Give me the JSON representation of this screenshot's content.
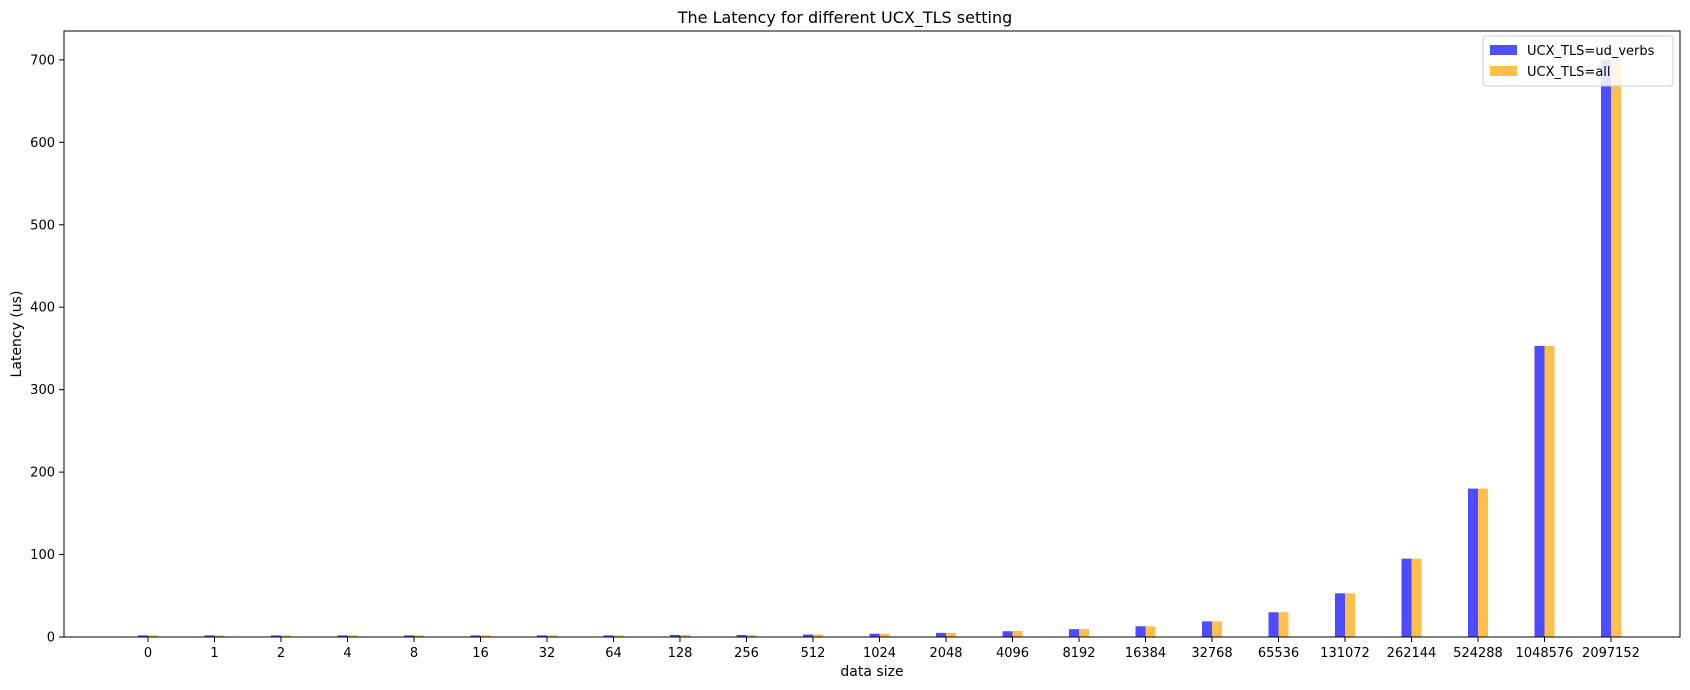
{
  "chart_data": {
    "type": "bar",
    "title": "The Latency for different UCX_TLS setting",
    "xlabel": "data size",
    "ylabel": "Latency (us)",
    "categories": [
      "0",
      "1",
      "2",
      "4",
      "8",
      "16",
      "32",
      "64",
      "128",
      "256",
      "512",
      "1024",
      "2048",
      "4096",
      "8192",
      "16384",
      "32768",
      "65536",
      "131072",
      "262144",
      "524288",
      "1048576",
      "2097152"
    ],
    "series": [
      {
        "name": "UCX_TLS=ud_verbs",
        "color": "#4d4dff",
        "values": [
          2.0,
          2.0,
          2.0,
          2.0,
          2.0,
          2.0,
          2.0,
          2.0,
          2.5,
          2.5,
          3.0,
          4.0,
          5.0,
          7.0,
          9.5,
          13.0,
          19.0,
          30.0,
          53.0,
          95.0,
          180.0,
          353.0,
          700.0
        ]
      },
      {
        "name": "UCX_TLS=all",
        "color": "#ffbf4d",
        "values": [
          2.0,
          2.0,
          2.0,
          2.0,
          2.0,
          2.0,
          2.0,
          2.0,
          2.5,
          2.5,
          3.0,
          4.0,
          5.0,
          7.5,
          9.5,
          13.0,
          19.0,
          30.0,
          53.0,
          95.0,
          180.0,
          353.0,
          700.0
        ]
      }
    ],
    "ylim": [
      0,
      735
    ],
    "yticks": [
      0,
      100,
      200,
      300,
      400,
      500,
      600,
      700
    ],
    "grid": false,
    "legend_position": "top-right"
  }
}
